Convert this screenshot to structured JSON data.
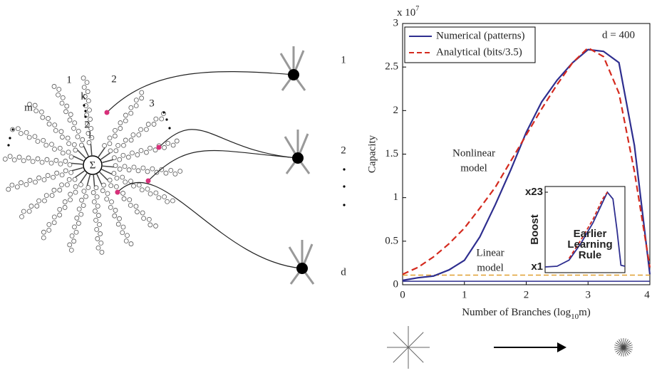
{
  "chart_data": {
    "type": "line",
    "y_label": "Capacity",
    "x_label": [
      "Number of Branches (log",
      "10",
      "m)"
    ],
    "y_multiplier": [
      "x 10",
      "7"
    ],
    "x": [
      0,
      0.25,
      0.5,
      0.75,
      1,
      1.25,
      1.5,
      1.75,
      2,
      2.25,
      2.5,
      2.75,
      3,
      3.25,
      3.5,
      3.75,
      4
    ],
    "xlim": [
      0,
      4
    ],
    "xticks": [
      0,
      1,
      2,
      3,
      4
    ],
    "ylim": [
      0,
      3
    ],
    "yticks": [
      0,
      0.5,
      1,
      1.5,
      2,
      2.5,
      3
    ],
    "series": [
      {
        "name": "Numerical (patterns)",
        "color": "#2e2e8f",
        "dashed": false,
        "values": [
          0.05,
          0.08,
          0.1,
          0.17,
          0.28,
          0.55,
          0.92,
          1.32,
          1.75,
          2.1,
          2.35,
          2.55,
          2.7,
          2.68,
          2.55,
          1.6,
          0.12
        ]
      },
      {
        "name": "Analytical (bits/3.5)",
        "color": "#d42a1e",
        "dashed": true,
        "values": [
          0.12,
          0.2,
          0.32,
          0.47,
          0.65,
          0.88,
          1.12,
          1.42,
          1.72,
          2.02,
          2.3,
          2.55,
          2.72,
          2.62,
          2.2,
          1.3,
          0.2
        ]
      }
    ],
    "baselines": [
      {
        "value": 0.04,
        "color": "#2e2e8f",
        "dashed": false
      },
      {
        "value": 0.11,
        "color": "#e0a030",
        "dashed": true
      }
    ],
    "annotations": {
      "d": "d = 400",
      "nonlinear": [
        "Nonlinear",
        "model"
      ],
      "linear": [
        "Linear",
        "model"
      ]
    },
    "inset": {
      "y_label": "Boost",
      "ylim": [
        1,
        23
      ],
      "xlim": [
        0,
        1
      ],
      "yticks": [
        {
          "value": 1,
          "label": "x1"
        },
        {
          "value": 23,
          "label": "x23"
        }
      ],
      "x": [
        0,
        0.15,
        0.3,
        0.45,
        0.6,
        0.72,
        0.78,
        0.85,
        0.9,
        0.95,
        1
      ],
      "series": [
        {
          "color": "#2e2e8f",
          "dashed": false,
          "values": [
            1,
            1.2,
            3,
            8,
            14,
            20,
            23,
            21,
            12,
            1.5,
            1.2
          ]
        },
        {
          "color": "#d42a1e",
          "dashed": true,
          "values": [
            null,
            null,
            3.5,
            9,
            15,
            21,
            23,
            null,
            null,
            null,
            null
          ]
        }
      ],
      "text": [
        "Earlier",
        "Learning",
        "Rule"
      ]
    }
  },
  "diagram": {
    "soma": "Σ",
    "branch_labels": [
      "1",
      "2",
      "3",
      "m"
    ],
    "bead_labels": [
      "k",
      "2",
      "1"
    ],
    "neuron_labels": [
      "1",
      "2",
      "d"
    ]
  }
}
